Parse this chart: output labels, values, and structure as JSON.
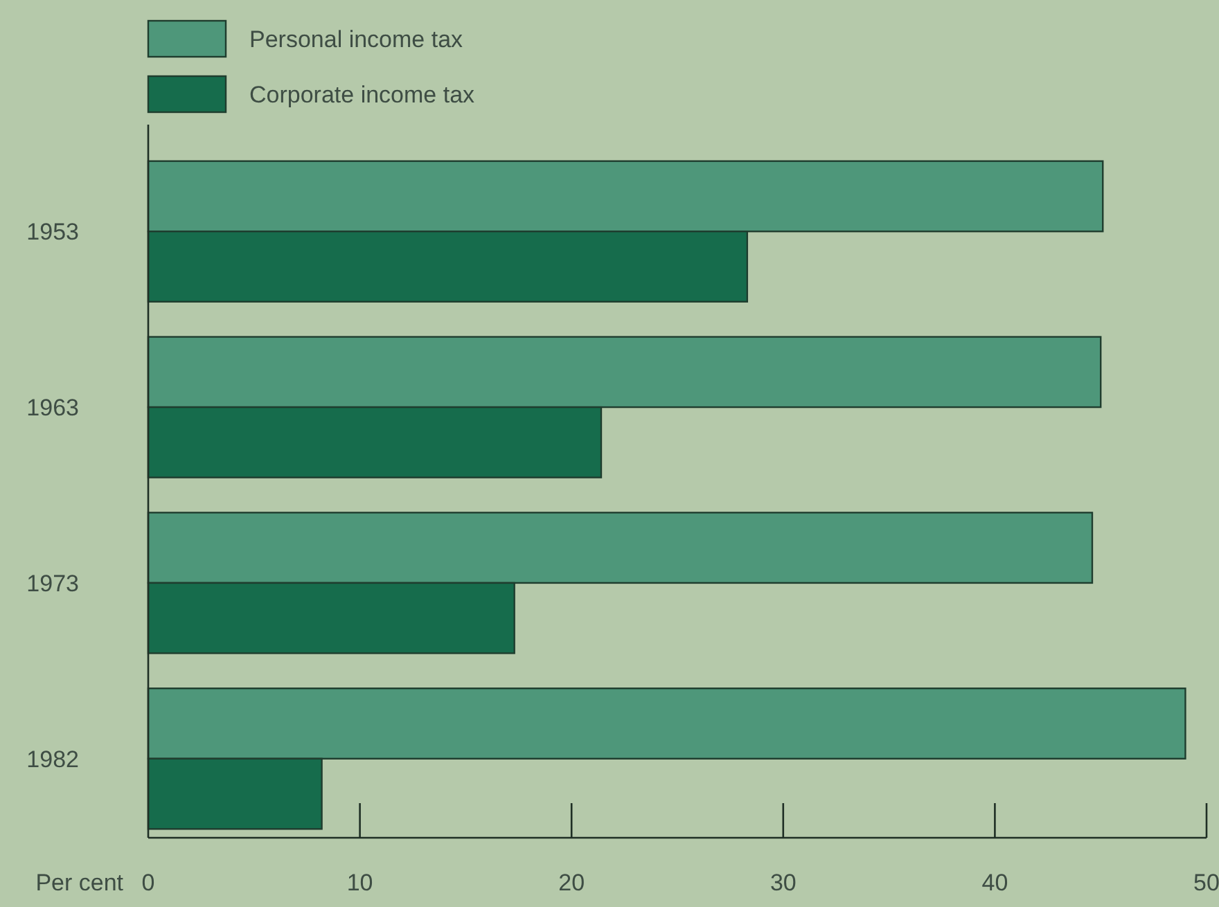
{
  "chart_data": {
    "type": "bar",
    "orientation": "horizontal",
    "xlabel": "Per cent",
    "categories": [
      "1953",
      "1963",
      "1973",
      "1982"
    ],
    "series": [
      {
        "name": "Personal income tax",
        "color": "#4e977a",
        "values": [
          45.1,
          45.0,
          44.6,
          49.0
        ]
      },
      {
        "name": "Corporate income tax",
        "color": "#166c4c",
        "values": [
          28.3,
          21.4,
          17.3,
          8.2
        ]
      }
    ],
    "xlim": [
      0,
      50
    ],
    "xticks": [
      0,
      10,
      20,
      30,
      40,
      50
    ],
    "legend": "top left",
    "grid": false
  }
}
